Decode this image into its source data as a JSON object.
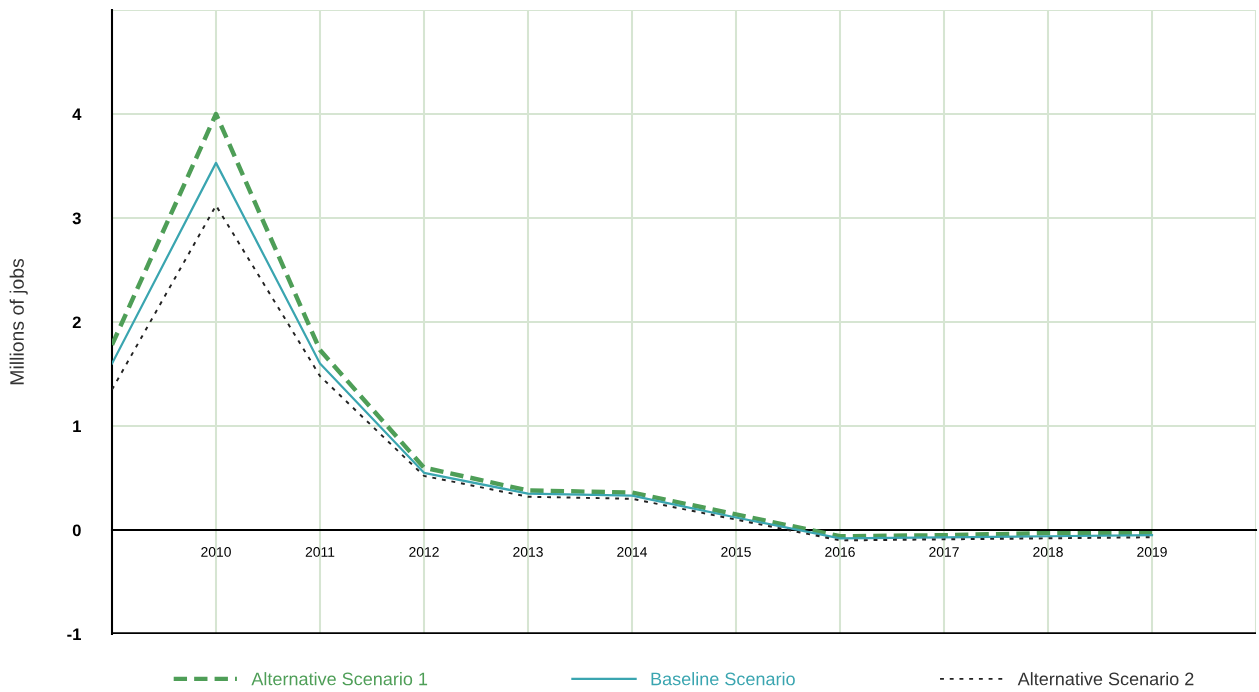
{
  "chart_data": {
    "type": "line",
    "ylabel": "Millions of jobs",
    "x": [
      2009,
      2010,
      2011,
      2012,
      2013,
      2014,
      2015,
      2016,
      2017,
      2018,
      2019
    ],
    "series": [
      {
        "name": "Alternative Scenario 1",
        "color": "#4e9e57",
        "line_style": "dashed",
        "values": [
          1.78,
          4.0,
          1.73,
          0.6,
          0.38,
          0.36,
          0.15,
          -0.06,
          -0.05,
          -0.03,
          -0.03
        ]
      },
      {
        "name": "Baseline Scenario",
        "color": "#3aa5b0",
        "line_style": "solid",
        "values": [
          1.6,
          3.53,
          1.6,
          0.55,
          0.35,
          0.33,
          0.12,
          -0.08,
          -0.07,
          -0.06,
          -0.05
        ]
      },
      {
        "name": "Alternative Scenario 2",
        "color": "#222222",
        "line_style": "dotted",
        "values": [
          1.35,
          3.12,
          1.48,
          0.52,
          0.32,
          0.3,
          0.1,
          -0.1,
          -0.09,
          -0.08,
          -0.07
        ]
      }
    ],
    "xlim": [
      2009,
      2020
    ],
    "xticks": [
      2010,
      2011,
      2012,
      2013,
      2014,
      2015,
      2016,
      2017,
      2018,
      2019,
      {
        "value": 2020,
        "label": null
      }
    ],
    "ylim": [
      -1,
      5
    ],
    "yticks": [
      -1,
      0,
      1,
      2,
      3,
      4,
      {
        "value": 5,
        "label": null
      }
    ],
    "grid": true,
    "legend": "bottom",
    "marker": "none"
  }
}
